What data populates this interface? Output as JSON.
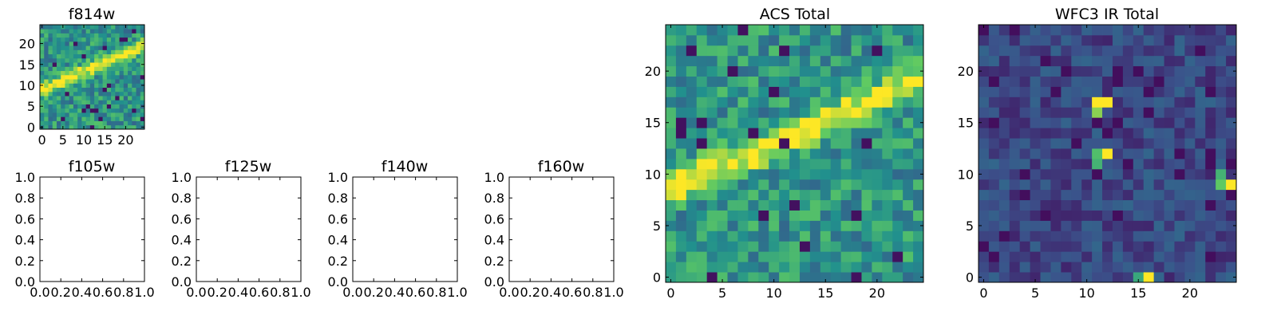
{
  "colors": {
    "colormap": "viridis",
    "viridis_stops": [
      "#440154",
      "#3b528b",
      "#21908d",
      "#5dc963",
      "#fde725"
    ]
  },
  "chart_data": [
    {
      "type": "heatmap",
      "title": "f814w",
      "grid_size": [
        25,
        25
      ],
      "xlim": [
        -0.5,
        24.5
      ],
      "ylim": [
        -0.5,
        24.5
      ],
      "xticks": [
        0,
        5,
        10,
        15,
        20
      ],
      "yticks": [
        0,
        5,
        10,
        15,
        20
      ],
      "feature": "bright diagonal streak from (0, 9) to (24, 19) on a noisy green background",
      "colormap": "viridis"
    },
    {
      "type": "empty",
      "title": "f105w",
      "xlim": [
        0,
        1
      ],
      "ylim": [
        0,
        1
      ],
      "xticks": [
        "0.0",
        "0.2",
        "0.4",
        "0.6",
        "0.8",
        "1.0"
      ],
      "yticks": [
        "0.0",
        "0.2",
        "0.4",
        "0.6",
        "0.8",
        "1.0"
      ]
    },
    {
      "type": "empty",
      "title": "f125w",
      "xlim": [
        0,
        1
      ],
      "ylim": [
        0,
        1
      ],
      "xticks": [
        "0.0",
        "0.2",
        "0.4",
        "0.6",
        "0.8",
        "1.0"
      ],
      "yticks": [
        "0.0",
        "0.2",
        "0.4",
        "0.6",
        "0.8",
        "1.0"
      ]
    },
    {
      "type": "empty",
      "title": "f140w",
      "xlim": [
        0,
        1
      ],
      "ylim": [
        0,
        1
      ],
      "xticks": [
        "0.0",
        "0.2",
        "0.4",
        "0.6",
        "0.8",
        "1.0"
      ],
      "yticks": [
        "0.0",
        "0.2",
        "0.4",
        "0.6",
        "0.8",
        "1.0"
      ]
    },
    {
      "type": "empty",
      "title": "f160w",
      "xlim": [
        0,
        1
      ],
      "ylim": [
        0,
        1
      ],
      "xticks": [
        "0.0",
        "0.2",
        "0.4",
        "0.6",
        "0.8",
        "1.0"
      ],
      "yticks": [
        "0.0",
        "0.2",
        "0.4",
        "0.6",
        "0.8",
        "1.0"
      ]
    },
    {
      "type": "heatmap",
      "title": "ACS Total",
      "grid_size": [
        25,
        25
      ],
      "xlim": [
        -0.5,
        24.5
      ],
      "ylim": [
        -0.5,
        24.5
      ],
      "xticks": [
        0,
        5,
        10,
        15,
        20
      ],
      "yticks": [
        0,
        5,
        10,
        15,
        20
      ],
      "feature": "bright diagonal streak from (0, 8.5) to (24, 19) on a noisy green background",
      "colormap": "viridis"
    },
    {
      "type": "heatmap",
      "title": "WFC3 IR Total",
      "grid_size": [
        25,
        25
      ],
      "xlim": [
        -0.5,
        24.5
      ],
      "ylim": [
        -0.5,
        24.5
      ],
      "xticks": [
        0,
        5,
        10,
        15,
        20
      ],
      "yticks": [
        0,
        5,
        10,
        15,
        20
      ],
      "feature": "dark blue noisy background with a few bright yellow hot pixels",
      "hot_pixels": [
        {
          "x": 11,
          "y": 17,
          "v": 1.0
        },
        {
          "x": 12,
          "y": 17,
          "v": 1.0
        },
        {
          "x": 11,
          "y": 16,
          "v": 0.82
        },
        {
          "x": 11,
          "y": 12,
          "v": 0.7
        },
        {
          "x": 12,
          "y": 12,
          "v": 1.0
        },
        {
          "x": 11,
          "y": 11,
          "v": 0.65
        },
        {
          "x": 23,
          "y": 10,
          "v": 0.65
        },
        {
          "x": 24,
          "y": 9,
          "v": 1.0
        },
        {
          "x": 23,
          "y": 9,
          "v": 0.75
        },
        {
          "x": 16,
          "y": 0,
          "v": 1.0
        },
        {
          "x": 15,
          "y": 0,
          "v": 0.6
        }
      ],
      "colormap": "viridis"
    }
  ]
}
